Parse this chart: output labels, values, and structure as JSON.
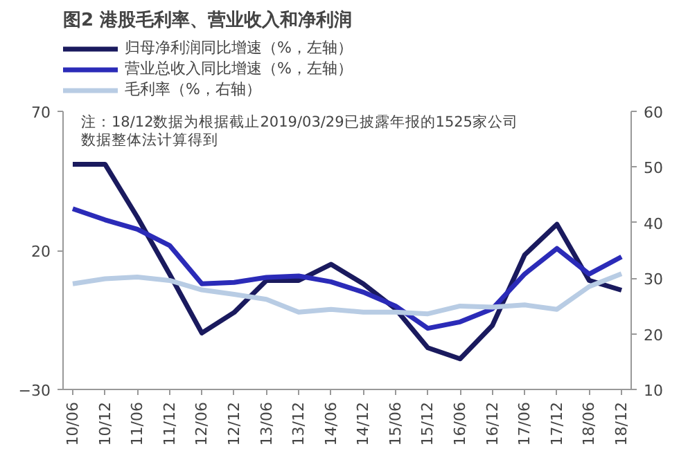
{
  "chart_data": {
    "type": "line",
    "title": "图2 港股毛利率、营业收入和净利润",
    "categories": [
      "10/06",
      "10/12",
      "11/06",
      "11/12",
      "12/06",
      "12/12",
      "13/06",
      "13/12",
      "14/06",
      "14/12",
      "15/06",
      "15/12",
      "16/06",
      "16/12",
      "17/06",
      "17/12",
      "18/06",
      "18/12"
    ],
    "series": [
      {
        "name": "归母净利润同比增速（%，左轴）",
        "color": "#1a1a5e",
        "values": [
          51,
          51,
          32,
          11.5,
          -9.7,
          -2.3,
          9.2,
          9.2,
          15,
          8,
          -1,
          -15,
          -19,
          -7,
          18.4,
          29.4,
          9.2,
          5.7
        ]
      },
      {
        "name": "营业总收入同比增速（%，左轴）",
        "color": "#2b2bb8",
        "values": [
          35,
          31,
          27.6,
          21.8,
          8,
          8.5,
          10.3,
          10.8,
          8.7,
          5,
          0,
          -8,
          -5.7,
          -1,
          11.5,
          20.7,
          11.5,
          17.7
        ]
      },
      {
        "name": "毛利率（%，右轴）",
        "color": "#b8cce4",
        "axis": "y2",
        "values": [
          29,
          29.9,
          30.2,
          29.6,
          27.9,
          27.1,
          26.2,
          23.9,
          24.4,
          23.9,
          23.9,
          23.6,
          25,
          24.8,
          25.2,
          24.4,
          28.5,
          30.8
        ]
      }
    ],
    "ylim": [
      -30,
      70
    ],
    "yticks": [
      -30,
      20,
      70
    ],
    "y2lim": [
      10,
      60
    ],
    "y2ticks": [
      10,
      20,
      30,
      40,
      50,
      60
    ],
    "annotations": [
      "注：18/12数据为根据截止2019/03/29已披露年报的1525家公司数据整体法计算得到"
    ],
    "legend": "top left",
    "grid": false,
    "marker": "none",
    "line_style": "solid"
  }
}
